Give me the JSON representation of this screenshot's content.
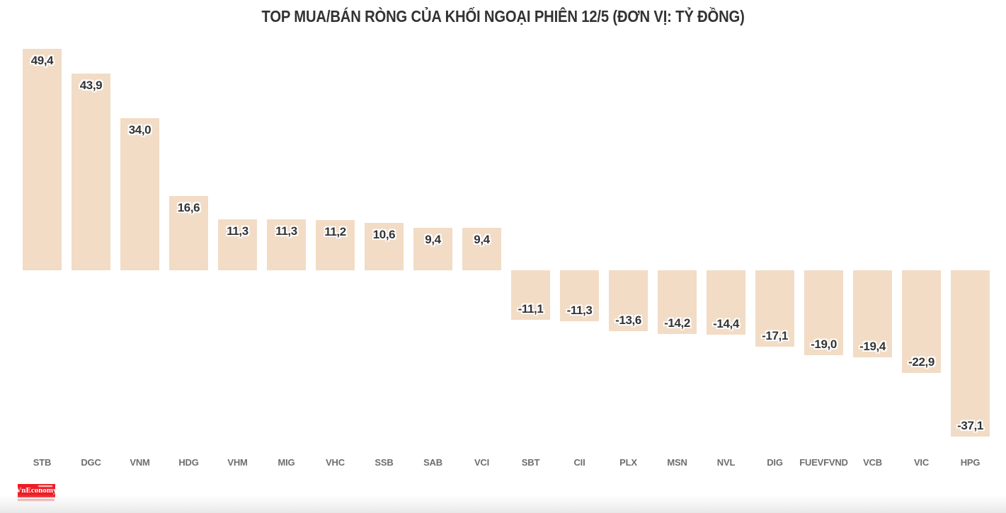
{
  "title": "TOP MUA/BÁN RÒNG CỦA KHỐI NGOẠI PHIÊN 12/5 (ĐƠN VỊ: TỶ ĐỒNG)",
  "chart_data": {
    "type": "bar",
    "title": "TOP MUA/BÁN RÒNG CỦA KHỐI NGOẠI PHIÊN 12/5 (ĐƠN VỊ: TỶ ĐỒNG)",
    "categories": [
      "STB",
      "DGC",
      "VNM",
      "HDG",
      "VHM",
      "MIG",
      "VHC",
      "SSB",
      "SAB",
      "VCI",
      "SBT",
      "CII",
      "PLX",
      "MSN",
      "NVL",
      "DIG",
      "FUEVFVND",
      "VCB",
      "VIC",
      "HPG"
    ],
    "values": [
      49.4,
      43.9,
      34.0,
      16.6,
      11.3,
      11.3,
      11.2,
      10.6,
      9.4,
      9.4,
      -11.1,
      -11.3,
      -13.6,
      -14.2,
      -14.4,
      -17.1,
      -19.0,
      -19.4,
      -22.9,
      -37.1
    ],
    "value_labels": [
      "49,4",
      "43,9",
      "34,0",
      "16,6",
      "11,3",
      "11,3",
      "11,2",
      "10,6",
      "9,4",
      "9,4",
      "-11,1",
      "-11,3",
      "-13,6",
      "-14,2",
      "-14,4",
      "-17,1",
      "-19,0",
      "-19,4",
      "-22,9",
      "-37,1"
    ],
    "xlabel": "",
    "ylabel": "",
    "ylim": [
      -40,
      52
    ],
    "grid": false,
    "legend": false,
    "bar_color": "#f2dcc6",
    "value_label_color": "#333333",
    "tick_label_color": "#6e6e6e",
    "title_color": "#333333"
  },
  "footer": {
    "logo_text": "VnEconomy",
    "logo_bg_color": "#ed1c24"
  }
}
